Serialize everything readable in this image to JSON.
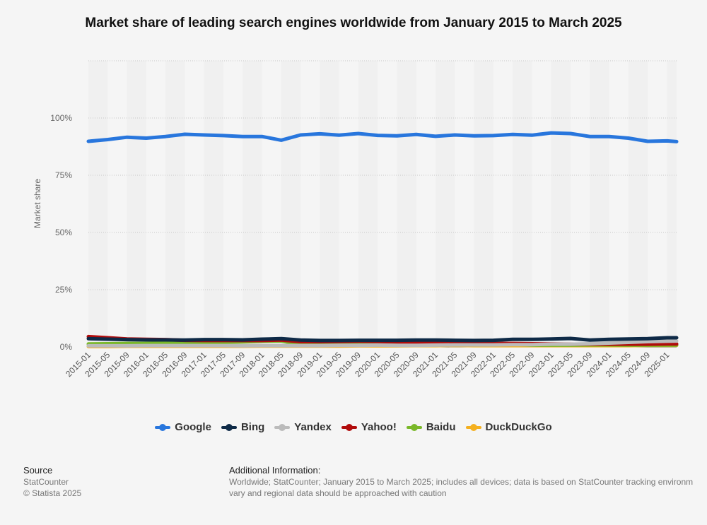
{
  "chart_data": {
    "type": "line",
    "title": "Market share of leading search engines worldwide from January 2015 to March 2025",
    "ylabel": "Market share",
    "xlabel": "",
    "ylim": [
      0,
      125
    ],
    "yticks": [
      "0%",
      "25%",
      "50%",
      "75%",
      "100%"
    ],
    "grid": true,
    "legend_position": "bottom",
    "x": [
      "2015-01",
      "2015-05",
      "2015-09",
      "2016-01",
      "2016-05",
      "2016-09",
      "2017-01",
      "2017-05",
      "2017-09",
      "2018-01",
      "2018-05",
      "2018-09",
      "2019-01",
      "2019-05",
      "2019-09",
      "2020-01",
      "2020-05",
      "2020-09",
      "2021-01",
      "2021-05",
      "2021-09",
      "2022-01",
      "2022-05",
      "2022-09",
      "2023-01",
      "2023-05",
      "2023-09",
      "2024-01",
      "2024-05",
      "2024-09",
      "2025-01",
      "2025-03"
    ],
    "xtick_labels": [
      "2015-01",
      "2015-05",
      "2015-09",
      "2016-01",
      "2016-05",
      "2016-09",
      "2017-01",
      "2017-05",
      "2017-09",
      "2018-01",
      "2018-05",
      "2018-09",
      "2019-01",
      "2019-05",
      "2019-09",
      "2020-01",
      "2020-05",
      "2020-09",
      "2021-01",
      "2021-05",
      "2021-09",
      "2022-01",
      "2022-05",
      "2022-09",
      "2023-01",
      "2023-05",
      "2023-09",
      "2024-01",
      "2024-05",
      "2024-09",
      "2025-01"
    ],
    "series": [
      {
        "name": "Google",
        "color": "#2876dd",
        "values": [
          89.8,
          90.6,
          91.6,
          91.2,
          91.9,
          92.9,
          92.6,
          92.3,
          91.9,
          91.9,
          90.3,
          92.6,
          93.1,
          92.5,
          93.2,
          92.4,
          92.2,
          92.8,
          92.0,
          92.6,
          92.2,
          92.3,
          92.8,
          92.5,
          93.5,
          93.2,
          91.9,
          91.9,
          91.2,
          89.8,
          90.0,
          89.7
        ]
      },
      {
        "name": "Bing",
        "color": "#0e2a47",
        "values": [
          3.6,
          3.4,
          3.2,
          3.1,
          3.1,
          3.0,
          3.2,
          3.2,
          3.1,
          3.4,
          3.6,
          3.0,
          2.8,
          2.8,
          2.9,
          2.9,
          2.9,
          3.0,
          3.0,
          2.9,
          2.8,
          2.9,
          3.3,
          3.3,
          3.5,
          3.7,
          3.0,
          3.3,
          3.5,
          3.6,
          4.0,
          4.0
        ]
      },
      {
        "name": "Yandex",
        "color": "#bbbbbb",
        "values": [
          0.5,
          0.5,
          0.5,
          0.6,
          0.6,
          0.6,
          0.6,
          0.6,
          0.5,
          0.6,
          0.6,
          0.6,
          0.6,
          0.7,
          0.7,
          0.8,
          0.7,
          0.7,
          0.8,
          0.9,
          0.9,
          0.9,
          1.0,
          1.0,
          1.2,
          1.2,
          1.4,
          1.7,
          2.0,
          2.3,
          2.5,
          2.6
        ]
      },
      {
        "name": "Yahoo!",
        "color": "#b10b0b",
        "values": [
          4.5,
          4.0,
          3.5,
          3.3,
          3.2,
          2.9,
          2.8,
          2.8,
          2.8,
          2.8,
          3.0,
          2.3,
          2.3,
          2.4,
          2.5,
          2.4,
          2.2,
          2.0,
          1.9,
          1.7,
          1.6,
          1.5,
          1.5,
          1.4,
          1.3,
          1.2,
          1.2,
          1.2,
          1.2,
          1.2,
          1.3,
          1.3
        ]
      },
      {
        "name": "Baidu",
        "color": "#7ab829",
        "values": [
          1.3,
          1.4,
          1.5,
          1.5,
          1.6,
          1.7,
          1.9,
          2.0,
          2.2,
          2.5,
          2.6,
          1.1,
          1.0,
          1.0,
          1.1,
          1.2,
          1.2,
          1.4,
          1.5,
          1.5,
          1.4,
          1.4,
          1.2,
          0.8,
          0.8,
          0.8,
          0.9,
          0.9,
          0.8,
          0.8,
          0.8,
          0.8
        ]
      },
      {
        "name": "DuckDuckGo",
        "color": "#f4b01f",
        "values": [
          0.2,
          0.2,
          0.3,
          0.3,
          0.3,
          0.3,
          0.3,
          0.3,
          0.3,
          0.4,
          0.4,
          0.4,
          0.4,
          0.4,
          0.5,
          0.5,
          0.5,
          0.6,
          0.6,
          0.7,
          0.6,
          0.6,
          0.6,
          0.6,
          0.6,
          0.6,
          0.6,
          0.6,
          0.6,
          0.7,
          0.7,
          0.7
        ]
      }
    ]
  },
  "footer": {
    "source_heading": "Source",
    "source_lines": [
      "StatCounter",
      "© Statista 2025"
    ],
    "additional_heading": "Additional Information:",
    "additional_lines": [
      "Worldwide; StatCounter; January 2015 to March 2025; includes all devices; data is based on StatCounter tracking environm",
      "vary and regional data should be approached with caution"
    ]
  }
}
